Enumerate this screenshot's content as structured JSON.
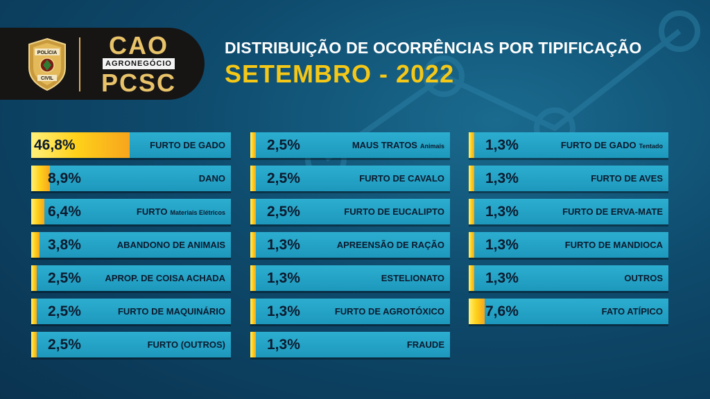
{
  "header": {
    "badge_top": "POLÍCIA",
    "badge_bottom": "CIVIL",
    "brand_top": "CAO",
    "brand_middle": "AGRONEGÓCIO",
    "brand_bottom": "PCSC",
    "title": "DISTRIBUIÇÃO DE OCORRÊNCIAS POR TIPIFICAÇÃO",
    "subtitle": "SETEMBRO - 2022"
  },
  "colors": {
    "background": "#0e4a6c",
    "bar": "#2caed0",
    "fill": "#ffd21a",
    "title": "#ffffff",
    "subtitle": "#f5c817",
    "brand": "#e8c36a"
  },
  "chart_data": {
    "type": "bar",
    "title": "DISTRIBUIÇÃO DE OCORRÊNCIAS POR TIPIFICAÇÃO",
    "subtitle": "SETEMBRO - 2022",
    "unit": "%",
    "items": [
      {
        "label": "FURTO DE GADO",
        "sub": "",
        "value": 46.8,
        "pct": "46,8%"
      },
      {
        "label": "DANO",
        "sub": "",
        "value": 8.9,
        "pct": "8,9%"
      },
      {
        "label": "FURTO",
        "sub": "Materiais Elétricos",
        "value": 6.4,
        "pct": "6,4%"
      },
      {
        "label": "ABANDONO DE ANIMAIS",
        "sub": "",
        "value": 3.8,
        "pct": "3,8%"
      },
      {
        "label": "APROP. DE COISA ACHADA",
        "sub": "",
        "value": 2.5,
        "pct": "2,5%"
      },
      {
        "label": "FURTO DE MAQUINÁRIO",
        "sub": "",
        "value": 2.5,
        "pct": "2,5%"
      },
      {
        "label": "FURTO (OUTROS)",
        "sub": "",
        "value": 2.5,
        "pct": "2,5%"
      },
      {
        "label": "MAUS TRATOS",
        "sub": "Animais",
        "value": 2.5,
        "pct": "2,5%"
      },
      {
        "label": "FURTO DE CAVALO",
        "sub": "",
        "value": 2.5,
        "pct": "2,5%"
      },
      {
        "label": "FURTO DE EUCALIPTO",
        "sub": "",
        "value": 2.5,
        "pct": "2,5%"
      },
      {
        "label": "APREENSÃO DE RAÇÃO",
        "sub": "",
        "value": 1.3,
        "pct": "1,3%"
      },
      {
        "label": "ESTELIONATO",
        "sub": "",
        "value": 1.3,
        "pct": "1,3%"
      },
      {
        "label": "FURTO DE AGROTÓXICO",
        "sub": "",
        "value": 1.3,
        "pct": "1,3%"
      },
      {
        "label": "FRAUDE",
        "sub": "",
        "value": 1.3,
        "pct": "1,3%"
      },
      {
        "label": "FURTO DE GADO",
        "sub": "Tentado",
        "value": 1.3,
        "pct": "1,3%"
      },
      {
        "label": "FURTO DE AVES",
        "sub": "",
        "value": 1.3,
        "pct": "1,3%"
      },
      {
        "label": "FURTO DE ERVA-MATE",
        "sub": "",
        "value": 1.3,
        "pct": "1,3%"
      },
      {
        "label": "FURTO DE MANDIOCA",
        "sub": "",
        "value": 1.3,
        "pct": "1,3%"
      },
      {
        "label": "OUTROS",
        "sub": "",
        "value": 1.3,
        "pct": "1,3%"
      },
      {
        "label": "FATO ATÍPICO",
        "sub": "",
        "value": 7.6,
        "pct": "7,6%"
      }
    ]
  }
}
